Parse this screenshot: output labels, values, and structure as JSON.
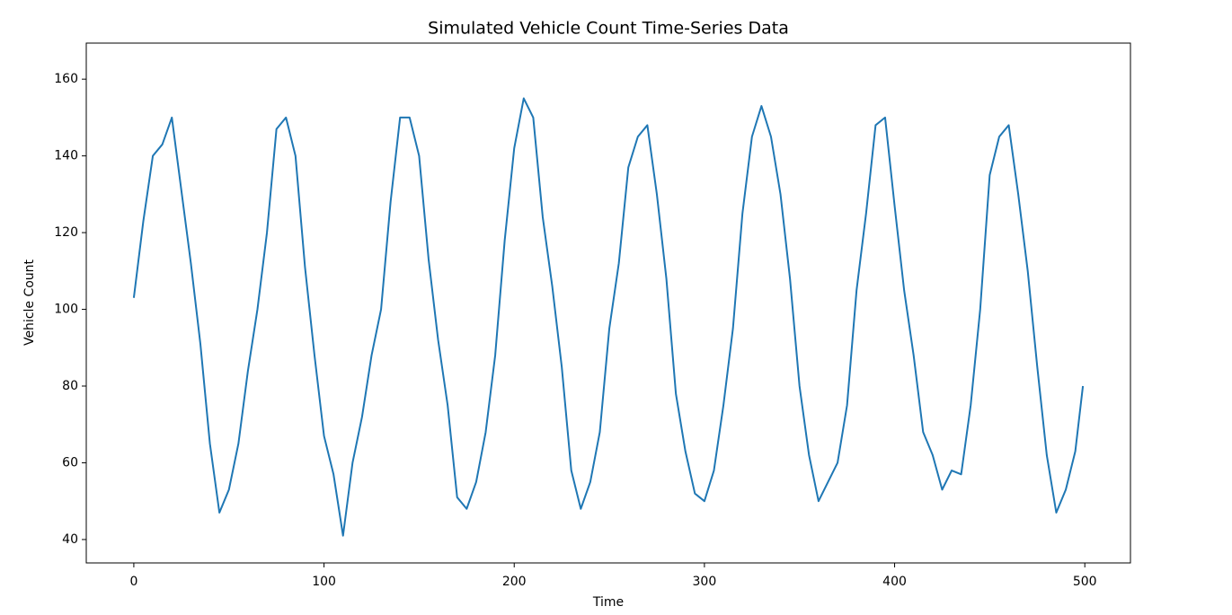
{
  "chart_data": {
    "type": "line",
    "title": "Simulated Vehicle Count Time-Series Data",
    "x_label": "Time",
    "y_label": "Vehicle Count",
    "x": [
      0,
      5,
      10,
      15,
      20,
      25,
      30,
      35,
      40,
      45,
      50,
      55,
      60,
      65,
      70,
      75,
      80,
      85,
      90,
      95,
      100,
      105,
      110,
      115,
      120,
      125,
      130,
      135,
      140,
      145,
      150,
      155,
      160,
      165,
      170,
      175,
      180,
      185,
      190,
      195,
      200,
      205,
      210,
      215,
      220,
      225,
      230,
      235,
      240,
      245,
      250,
      255,
      260,
      265,
      270,
      275,
      280,
      285,
      290,
      295,
      300,
      305,
      310,
      315,
      320,
      325,
      330,
      335,
      340,
      345,
      350,
      355,
      360,
      365,
      370,
      375,
      380,
      385,
      390,
      395,
      400,
      405,
      410,
      415,
      420,
      425,
      430,
      435,
      440,
      445,
      450,
      455,
      460,
      465,
      470,
      475,
      480,
      485,
      490,
      495,
      499
    ],
    "series": [
      {
        "name": "Vehicle Count",
        "color": "#1f77b4",
        "values": [
          103,
          123,
          140,
          143,
          150,
          131,
          112,
          91,
          65,
          47,
          53,
          65,
          84,
          100,
          120,
          147,
          150,
          140,
          111,
          88,
          67,
          57,
          41,
          60,
          72,
          88,
          100,
          128,
          150,
          150,
          140,
          113,
          92,
          75,
          51,
          48,
          55,
          68,
          88,
          118,
          142,
          155,
          150,
          124,
          106,
          85,
          58,
          48,
          55,
          68,
          95,
          112,
          137,
          145,
          148,
          130,
          108,
          78,
          63,
          52,
          50,
          58,
          75,
          95,
          125,
          145,
          153,
          145,
          130,
          108,
          80,
          62,
          50,
          55,
          60,
          75,
          105,
          125,
          148,
          150,
          127,
          105,
          88,
          68,
          62,
          53,
          58,
          57,
          75,
          100,
          135,
          145,
          148,
          130,
          110,
          85,
          62,
          47,
          53,
          63,
          80
        ]
      }
    ],
    "xlim": [
      -25,
      524
    ],
    "ylim": [
      33.9,
      169.4
    ],
    "xticks": [
      0,
      100,
      200,
      300,
      400,
      500
    ],
    "yticks": [
      40,
      60,
      80,
      100,
      120,
      140,
      160
    ]
  }
}
